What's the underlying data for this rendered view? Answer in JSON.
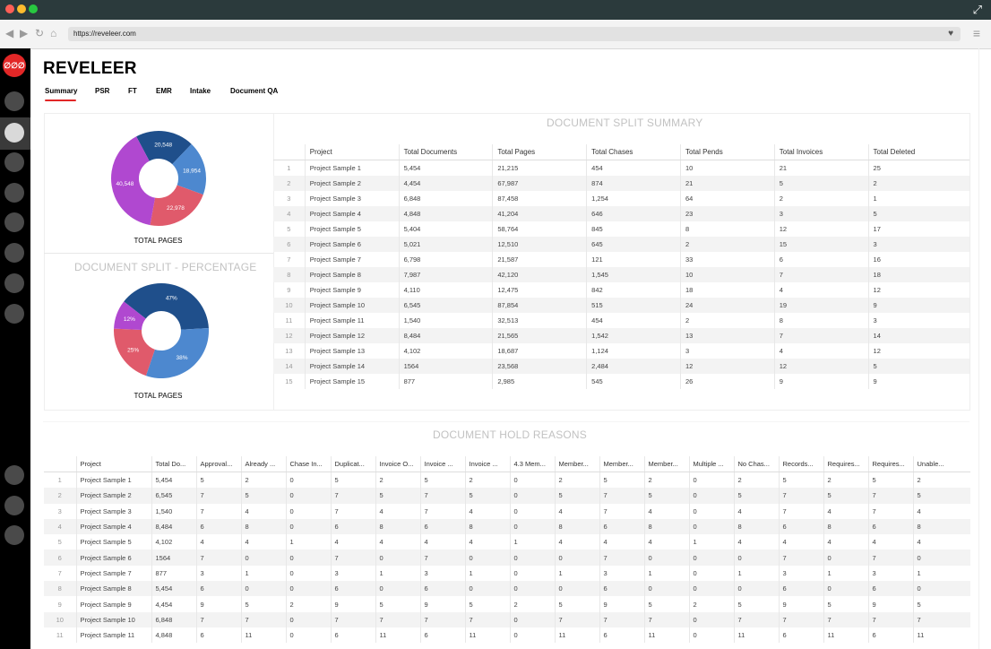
{
  "browser": {
    "url": "https://reveleer.com",
    "nav_icons": [
      "back-icon",
      "forward-icon",
      "reload-icon",
      "home-icon"
    ],
    "window_buttons": [
      "close",
      "minimize",
      "zoom"
    ],
    "colors": {
      "close": "#ff5f57",
      "minimize": "#febc2e",
      "zoom": "#28c840"
    }
  },
  "sidebar": {
    "logo_text": "∅∅∅",
    "brand_color": "#e22727",
    "item_count": 12,
    "active_index": 1
  },
  "app": {
    "title": "REVELEER",
    "tabs": [
      "Summary",
      "PSR",
      "FT",
      "EMR",
      "Intake",
      "Document QA"
    ],
    "active_tab": "Summary"
  },
  "pie_total_pages": {
    "caption": "TOTAL PAGES",
    "slices": [
      {
        "label": "20,548",
        "value": 20548,
        "color": "#1f4f8b"
      },
      {
        "label": "18,954",
        "value": 18954,
        "color": "#4d88cf"
      },
      {
        "label": "22,978",
        "value": 22978,
        "color": "#e05a6b"
      },
      {
        "label": "40,548",
        "value": 40548,
        "color": "#b048d0"
      }
    ]
  },
  "pie_percentage": {
    "title": "DOCUMENT SPLIT - PERCENTAGE",
    "caption": "TOTAL PAGES",
    "slices": [
      {
        "label": "47%",
        "value": 47,
        "color": "#1f4f8b"
      },
      {
        "label": "38%",
        "value": 38,
        "color": "#4d88cf"
      },
      {
        "label": "25%",
        "value": 25,
        "color": "#e05a6b"
      },
      {
        "label": "12%",
        "value": 12,
        "color": "#b048d0"
      }
    ]
  },
  "summary": {
    "title": "DOCUMENT SPLIT SUMMARY",
    "columns": [
      "Project",
      "Total Documents",
      "Total Pages",
      "Total Chases",
      "Total Pends",
      "Total Invoices",
      "Total Deleted"
    ],
    "rows": [
      [
        "1",
        "Project Sample 1",
        "5,454",
        "21,215",
        "454",
        "10",
        "21",
        "25"
      ],
      [
        "2",
        "Project Sample 2",
        "4,454",
        "67,987",
        "874",
        "21",
        "5",
        "2"
      ],
      [
        "3",
        "Project Sample 3",
        "6,848",
        "87,458",
        "1,254",
        "64",
        "2",
        "1"
      ],
      [
        "4",
        "Project Sample 4",
        "4,848",
        "41,204",
        "646",
        "23",
        "3",
        "5"
      ],
      [
        "5",
        "Project Sample 5",
        "5,404",
        "58,764",
        "845",
        "8",
        "12",
        "17"
      ],
      [
        "6",
        "Project Sample 6",
        "5,021",
        "12,510",
        "645",
        "2",
        "15",
        "3"
      ],
      [
        "7",
        "Project Sample 7",
        "6,798",
        "21,587",
        "121",
        "33",
        "6",
        "16"
      ],
      [
        "8",
        "Project Sample 8",
        "7,987",
        "42,120",
        "1,545",
        "10",
        "7",
        "18"
      ],
      [
        "9",
        "Project Sample 9",
        "4,110",
        "12,475",
        "842",
        "18",
        "4",
        "12"
      ],
      [
        "10",
        "Project Sample 10",
        "6,545",
        "87,854",
        "515",
        "24",
        "19",
        "9"
      ],
      [
        "11",
        "Project Sample 11",
        "1,540",
        "32,513",
        "454",
        "2",
        "8",
        "3"
      ],
      [
        "12",
        "Project Sample 12",
        "8,484",
        "21,565",
        "1,542",
        "13",
        "7",
        "14"
      ],
      [
        "13",
        "Project Sample 13",
        "4,102",
        "18,687",
        "1,124",
        "3",
        "4",
        "12"
      ],
      [
        "14",
        "Project Sample 14",
        "1564",
        "23,568",
        "2,484",
        "12",
        "12",
        "5"
      ],
      [
        "15",
        "Project Sample 15",
        "877",
        "2,985",
        "545",
        "26",
        "9",
        "9"
      ]
    ]
  },
  "hold_reasons": {
    "title": "DOCUMENT HOLD REASONS",
    "columns": [
      "Project",
      "Total Do...",
      "Approval...",
      "Already ...",
      "Chase In...",
      "Duplicat...",
      "Invoice O...",
      "Invoice ...",
      "Invoice ...",
      "4.3 Mem...",
      "Member...",
      "Member...",
      "Member...",
      "Multiple ...",
      "No Chas...",
      "Records...",
      "Requires...",
      "Requires...",
      "Unable..."
    ],
    "rows": [
      [
        "1",
        "Project Sample 1",
        "5,454",
        "5",
        "2",
        "0",
        "5",
        "2",
        "5",
        "2",
        "0",
        "2",
        "5",
        "2",
        "0",
        "2",
        "5",
        "2",
        "5",
        "2"
      ],
      [
        "2",
        "Project Sample 2",
        "6,545",
        "7",
        "5",
        "0",
        "7",
        "5",
        "7",
        "5",
        "0",
        "5",
        "7",
        "5",
        "0",
        "5",
        "7",
        "5",
        "7",
        "5"
      ],
      [
        "3",
        "Project Sample 3",
        "1,540",
        "7",
        "4",
        "0",
        "7",
        "4",
        "7",
        "4",
        "0",
        "4",
        "7",
        "4",
        "0",
        "4",
        "7",
        "4",
        "7",
        "4"
      ],
      [
        "4",
        "Project Sample 4",
        "8,484",
        "6",
        "8",
        "0",
        "6",
        "8",
        "6",
        "8",
        "0",
        "8",
        "6",
        "8",
        "0",
        "8",
        "6",
        "8",
        "6",
        "8"
      ],
      [
        "5",
        "Project Sample 5",
        "4,102",
        "4",
        "4",
        "1",
        "4",
        "4",
        "4",
        "4",
        "1",
        "4",
        "4",
        "4",
        "1",
        "4",
        "4",
        "4",
        "4",
        "4"
      ],
      [
        "6",
        "Project Sample 6",
        "1564",
        "7",
        "0",
        "0",
        "7",
        "0",
        "7",
        "0",
        "0",
        "0",
        "7",
        "0",
        "0",
        "0",
        "7",
        "0",
        "7",
        "0"
      ],
      [
        "7",
        "Project Sample 7",
        "877",
        "3",
        "1",
        "0",
        "3",
        "1",
        "3",
        "1",
        "0",
        "1",
        "3",
        "1",
        "0",
        "1",
        "3",
        "1",
        "3",
        "1"
      ],
      [
        "8",
        "Project Sample 8",
        "5,454",
        "6",
        "0",
        "0",
        "6",
        "0",
        "6",
        "0",
        "0",
        "0",
        "6",
        "0",
        "0",
        "0",
        "6",
        "0",
        "6",
        "0"
      ],
      [
        "9",
        "Project Sample 9",
        "4,454",
        "9",
        "5",
        "2",
        "9",
        "5",
        "9",
        "5",
        "2",
        "5",
        "9",
        "5",
        "2",
        "5",
        "9",
        "5",
        "9",
        "5"
      ],
      [
        "10",
        "Project Sample 10",
        "6,848",
        "7",
        "7",
        "0",
        "7",
        "7",
        "7",
        "7",
        "0",
        "7",
        "7",
        "7",
        "0",
        "7",
        "7",
        "7",
        "7",
        "7"
      ],
      [
        "11",
        "Project Sample 11",
        "4,848",
        "6",
        "11",
        "0",
        "6",
        "11",
        "6",
        "11",
        "0",
        "11",
        "6",
        "11",
        "0",
        "11",
        "6",
        "11",
        "6",
        "11"
      ]
    ]
  }
}
